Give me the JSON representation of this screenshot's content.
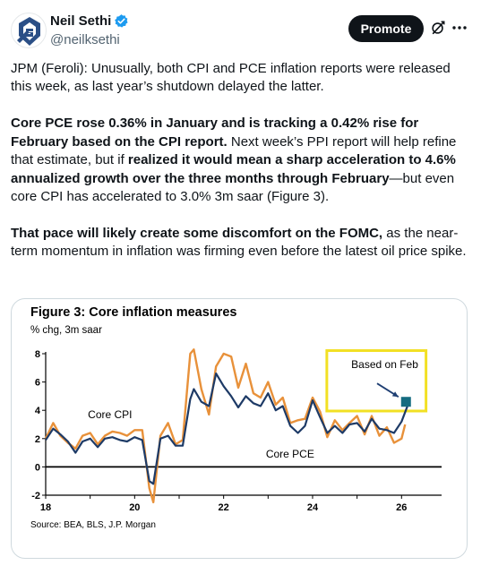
{
  "author": {
    "display_name": "Neil Sethi",
    "handle": "@neilksethi",
    "avatar_icon": "sa-logo-icon",
    "verified_icon": "verified-badge-icon"
  },
  "actions": {
    "promote_label": "Promote",
    "grok_icon": "grok-icon",
    "more_icon": "more-icon"
  },
  "tweet": {
    "p1": "JPM (Feroli): Unusually, both CPI and PCE inflation reports were released this week, as last year’s shutdown delayed the latter.",
    "p2_bold_a": "Core PCE rose 0.36% in January and is tracking a 0.42% rise for February based on the CPI report.",
    "p2_normal_a": " Next week’s PPI report will help refine that estimate, but if ",
    "p2_bold_b": "realized it would mean a sharp acceleration to 4.6% annualized growth over the three months through February",
    "p2_normal_b": "—but even core CPI has accelerated to 3.0% 3m saar (Figure 3).",
    "p3_bold": "That pace will likely create some discomfort on the FOMC,",
    "p3_normal": " as the near-term momentum in inflation was firming even before the latest oil price spike."
  },
  "chart_data": {
    "type": "line",
    "title": "Figure 3: Core inflation measures",
    "ylabel": "% chg, 3m saar",
    "source": "Source: BEA, BLS, J.P. Morgan",
    "xlim": [
      2018,
      2026.9
    ],
    "ylim": [
      -2,
      8
    ],
    "x_ticks": [
      18,
      20,
      22,
      24,
      26
    ],
    "y_ticks": [
      -2,
      0,
      2,
      4,
      6,
      8
    ],
    "colors": {
      "cpi": "#e8913a",
      "pce": "#1d3a66",
      "callout": "#f2e024",
      "marker": "#146c80",
      "arrow": "#1f3f73"
    },
    "series": [
      {
        "name": "Core CPI",
        "color": "#e8913a",
        "x": [
          2018.0,
          2018.17,
          2018.33,
          2018.5,
          2018.67,
          2018.83,
          2019.0,
          2019.17,
          2019.33,
          2019.5,
          2019.67,
          2019.83,
          2020.0,
          2020.17,
          2020.33,
          2020.42,
          2020.58,
          2020.75,
          2020.92,
          2021.08,
          2021.25,
          2021.33,
          2021.5,
          2021.67,
          2021.83,
          2022.0,
          2022.17,
          2022.33,
          2022.5,
          2022.67,
          2022.83,
          2023.0,
          2023.17,
          2023.33,
          2023.5,
          2023.67,
          2023.83,
          2024.0,
          2024.17,
          2024.33,
          2024.5,
          2024.67,
          2024.83,
          2025.0,
          2025.17,
          2025.33,
          2025.5,
          2025.67,
          2025.83,
          2026.0,
          2026.08
        ],
        "values": [
          2.0,
          3.1,
          2.2,
          1.7,
          1.3,
          2.2,
          2.4,
          1.6,
          2.2,
          2.5,
          2.4,
          2.2,
          2.6,
          2.6,
          -1.5,
          -2.5,
          2.2,
          3.1,
          1.6,
          1.9,
          8.0,
          8.3,
          5.5,
          3.7,
          7.1,
          8.0,
          7.8,
          5.6,
          7.3,
          5.2,
          4.9,
          6.0,
          4.4,
          4.9,
          3.1,
          3.3,
          3.4,
          4.9,
          3.9,
          2.1,
          3.3,
          2.6,
          3.1,
          3.6,
          2.3,
          3.6,
          2.2,
          2.8,
          1.7,
          2.0,
          3.0
        ]
      },
      {
        "name": "Core PCE",
        "color": "#1d3a66",
        "x": [
          2018.0,
          2018.17,
          2018.33,
          2018.5,
          2018.67,
          2018.83,
          2019.0,
          2019.17,
          2019.33,
          2019.5,
          2019.67,
          2019.83,
          2020.0,
          2020.17,
          2020.33,
          2020.42,
          2020.58,
          2020.75,
          2020.92,
          2021.08,
          2021.25,
          2021.33,
          2021.5,
          2021.67,
          2021.83,
          2022.0,
          2022.17,
          2022.33,
          2022.5,
          2022.67,
          2022.83,
          2023.0,
          2023.17,
          2023.33,
          2023.5,
          2023.67,
          2023.83,
          2024.0,
          2024.17,
          2024.33,
          2024.5,
          2024.67,
          2024.83,
          2025.0,
          2025.17,
          2025.33,
          2025.5,
          2025.67,
          2025.83,
          2026.0,
          2026.17
        ],
        "values": [
          1.9,
          2.7,
          2.3,
          1.8,
          1.0,
          1.8,
          2.0,
          1.4,
          2.0,
          2.1,
          1.9,
          1.8,
          2.1,
          1.9,
          -1.0,
          -1.2,
          2.0,
          2.2,
          1.5,
          1.5,
          4.8,
          5.5,
          4.6,
          4.3,
          6.6,
          5.7,
          5.0,
          4.2,
          5.0,
          4.5,
          4.3,
          5.2,
          4.0,
          4.3,
          2.9,
          2.4,
          2.9,
          4.7,
          3.5,
          2.4,
          2.9,
          2.4,
          3.0,
          3.1,
          2.5,
          3.4,
          2.7,
          2.6,
          2.4,
          3.2,
          4.6
        ]
      }
    ],
    "series_labels": {
      "cpi": "Core CPI",
      "pce": "Core PCE"
    },
    "annotation": {
      "text": "Based on Feb",
      "marker_x": 2026.1,
      "marker_y": 4.6
    }
  }
}
